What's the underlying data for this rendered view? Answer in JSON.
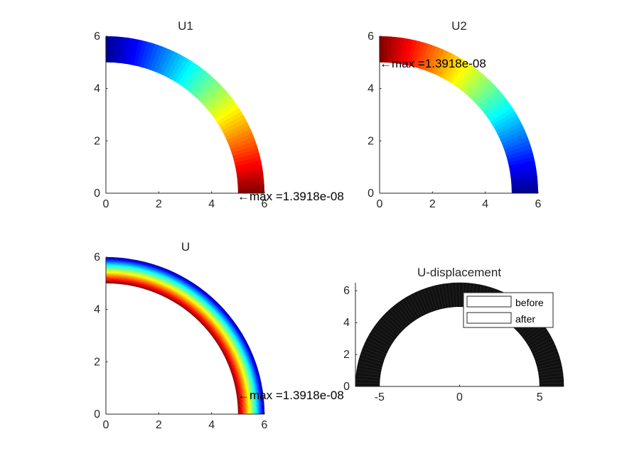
{
  "colors": {
    "jet": [
      "#00008f",
      "#0000ff",
      "#0080ff",
      "#00ffff",
      "#80ff80",
      "#ffff00",
      "#ff8000",
      "#ff0000",
      "#800000"
    ],
    "mesh": "#111111",
    "axis": "#262626"
  },
  "chart_data": [
    {
      "type": "heatmap",
      "title": "U1",
      "xlim": [
        0,
        6
      ],
      "ylim": [
        0,
        6
      ],
      "xticks": [
        0,
        2,
        4,
        6
      ],
      "yticks": [
        0,
        2,
        4,
        6
      ],
      "xticklabels": [
        "0",
        "2",
        "4",
        "6"
      ],
      "yticklabels": [
        "0",
        "2",
        "4",
        "6"
      ],
      "geometry": {
        "shape": "quarter-annulus",
        "r_inner": 5,
        "r_outer": 6,
        "theta_range_deg": [
          0,
          90
        ]
      },
      "field": {
        "direction": "angular",
        "low_at": "theta=90",
        "high_at": "theta=0"
      },
      "annotation": {
        "text": "←max =1.3918e-08",
        "at": [
          5,
          0
        ]
      }
    },
    {
      "type": "heatmap",
      "title": "U2",
      "xlim": [
        0,
        6
      ],
      "ylim": [
        0,
        6
      ],
      "xticks": [
        0,
        2,
        4,
        6
      ],
      "yticks": [
        0,
        2,
        4,
        6
      ],
      "xticklabels": [
        "0",
        "2",
        "4",
        "6"
      ],
      "yticklabels": [
        "0",
        "2",
        "4",
        "6"
      ],
      "geometry": {
        "shape": "quarter-annulus",
        "r_inner": 5,
        "r_outer": 6,
        "theta_range_deg": [
          0,
          90
        ]
      },
      "field": {
        "direction": "angular",
        "low_at": "theta=0",
        "high_at": "theta=90"
      },
      "annotation": {
        "text": "←max =1.3918e-08",
        "at": [
          0,
          5
        ]
      }
    },
    {
      "type": "heatmap",
      "title": "U",
      "xlim": [
        0,
        6
      ],
      "ylim": [
        0,
        6
      ],
      "xticks": [
        0,
        2,
        4,
        6
      ],
      "yticks": [
        0,
        2,
        4,
        6
      ],
      "xticklabels": [
        "0",
        "2",
        "4",
        "6"
      ],
      "yticklabels": [
        "0",
        "2",
        "4",
        "6"
      ],
      "geometry": {
        "shape": "quarter-annulus",
        "r_inner": 5,
        "r_outer": 6,
        "theta_range_deg": [
          0,
          90
        ]
      },
      "field": {
        "direction": "radial",
        "low_at": "r=6",
        "high_at": "r=5"
      },
      "annotation": {
        "text": "←max =1.3918e-08",
        "at": [
          5,
          0.8
        ]
      }
    },
    {
      "type": "scatter",
      "title": "U-displacement",
      "xlim": [
        -6.5,
        6.5
      ],
      "ylim": [
        0,
        6.5
      ],
      "xticks": [
        -5,
        0,
        5
      ],
      "yticks": [
        0,
        2,
        4,
        6
      ],
      "xticklabels": [
        "-5",
        "0",
        "5"
      ],
      "yticklabels": [
        "0",
        "2",
        "4",
        "6"
      ],
      "geometry": {
        "shape": "half-annulus",
        "r_inner": 5,
        "r_outer": 6.5,
        "theta_range_deg": [
          0,
          180
        ]
      },
      "legend": {
        "placement": "top-right",
        "entries": [
          "before",
          "after"
        ]
      }
    }
  ]
}
